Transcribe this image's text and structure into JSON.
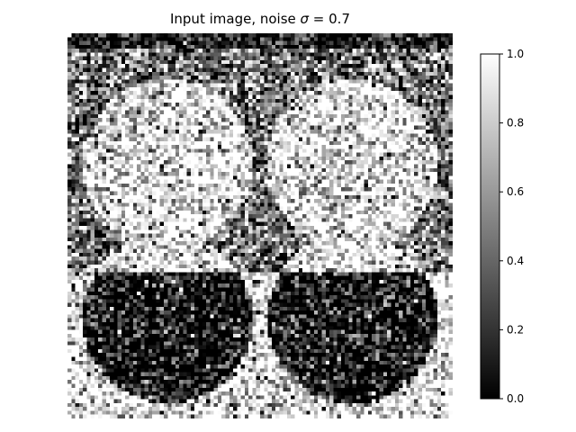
{
  "chart_data": {
    "type": "heatmap",
    "title_main": "Input image, noise ",
    "title_symbol": "σ",
    "title_tail": " = 0.7",
    "colormap": "gray",
    "grid_size": [
      100,
      100
    ],
    "noise_sigma": 0.7,
    "vmin": 0.0,
    "vmax": 1.0,
    "colorbar_ticks": [
      "0.0",
      "0.2",
      "0.4",
      "0.6",
      "0.8",
      "1.0"
    ],
    "colorbar_values": [
      0.0,
      0.2,
      0.4,
      0.6,
      0.8,
      1.0
    ],
    "description_shapes": "two bright disks on top, two dark disk halves on bottom, noisy"
  }
}
